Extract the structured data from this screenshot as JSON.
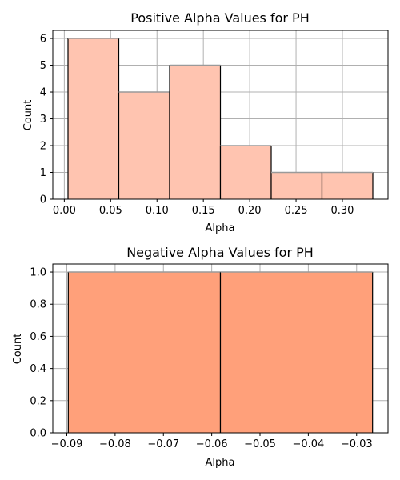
{
  "chart_data": [
    {
      "type": "bar",
      "title": "Positive Alpha Values for PH",
      "xlabel": "Alpha",
      "ylabel": "Count",
      "bin_edges": [
        0.004,
        0.0588,
        0.1136,
        0.1684,
        0.2232,
        0.278,
        0.3328
      ],
      "values": [
        6,
        4,
        5,
        2,
        1,
        1
      ],
      "xlim": [
        -0.0124,
        0.3492
      ],
      "ylim": [
        0,
        6.3
      ],
      "xticks": [
        0.0,
        0.05,
        0.1,
        0.15,
        0.2,
        0.25,
        0.3
      ],
      "xtick_labels": [
        "0.00",
        "0.05",
        "0.10",
        "0.15",
        "0.20",
        "0.25",
        "0.30"
      ],
      "yticks": [
        0,
        1,
        2,
        3,
        4,
        5,
        6
      ],
      "ytick_labels": [
        "0",
        "1",
        "2",
        "3",
        "4",
        "5",
        "6"
      ],
      "bar_color": "#ffc4b0",
      "grid": true
    },
    {
      "type": "bar",
      "title": "Negative Alpha Values for PH",
      "xlabel": "Alpha",
      "ylabel": "Count",
      "bin_edges": [
        -0.0897,
        -0.0582,
        -0.0267
      ],
      "values": [
        1,
        1
      ],
      "xlim": [
        -0.0929,
        -0.0235
      ],
      "ylim": [
        0,
        1.05
      ],
      "xticks": [
        -0.09,
        -0.08,
        -0.07,
        -0.06,
        -0.05,
        -0.04,
        -0.03
      ],
      "xtick_labels": [
        "−0.09",
        "−0.08",
        "−0.07",
        "−0.06",
        "−0.05",
        "−0.04",
        "−0.03"
      ],
      "yticks": [
        0,
        0.2,
        0.4,
        0.6,
        0.8,
        1.0
      ],
      "ytick_labels": [
        "0.0",
        "0.2",
        "0.4",
        "0.6",
        "0.8",
        "1.0"
      ],
      "bar_color": "#ffa07a",
      "grid": true
    }
  ]
}
